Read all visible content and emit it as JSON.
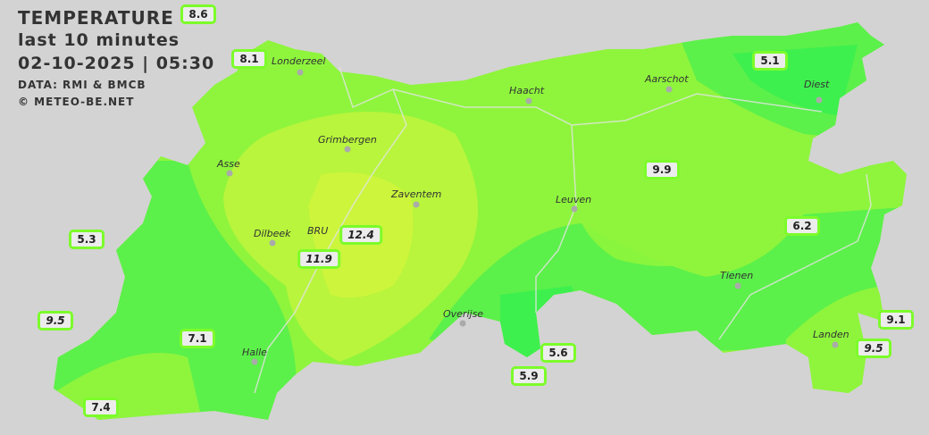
{
  "header": {
    "title": "TEMPERATURE",
    "subtitle": "last 10 minutes",
    "datetime": "02-10-2025  |  05:30",
    "source": "DATA: RMI & BMCB",
    "credit": "© METEO-BE.NET"
  },
  "colors": {
    "background": "#d3d3d3",
    "base": "#8ef53c",
    "cool": "#5cf04a",
    "cooler": "#3ef04e",
    "warm": "#b8f53c",
    "warmest": "#ccf53c",
    "label_border": "#7cfc2a"
  },
  "stations": [
    {
      "value": "8.6",
      "italic": false
    },
    {
      "value": "8.1",
      "italic": false
    },
    {
      "value": "5.1",
      "italic": false
    },
    {
      "value": "9.9",
      "italic": false
    },
    {
      "value": "6.2",
      "italic": false
    },
    {
      "value": "5.3",
      "italic": false
    },
    {
      "value": "12.4",
      "italic": true
    },
    {
      "value": "11.9",
      "italic": true
    },
    {
      "value": "9.5",
      "italic": true
    },
    {
      "value": "7.1",
      "italic": false
    },
    {
      "value": "7.4",
      "italic": false
    },
    {
      "value": "5.6",
      "italic": false
    },
    {
      "value": "5.9",
      "italic": false
    },
    {
      "value": "9.1",
      "italic": false
    },
    {
      "value": "9.5",
      "italic": true
    }
  ],
  "cities": [
    "Londerzeel",
    "Haacht",
    "Aarschot",
    "Diest",
    "Grimbergen",
    "Asse",
    "Zaventem",
    "Leuven",
    "Dilbeek",
    "BRU",
    "Tienen",
    "Overijse",
    "Halle",
    "Landen"
  ]
}
